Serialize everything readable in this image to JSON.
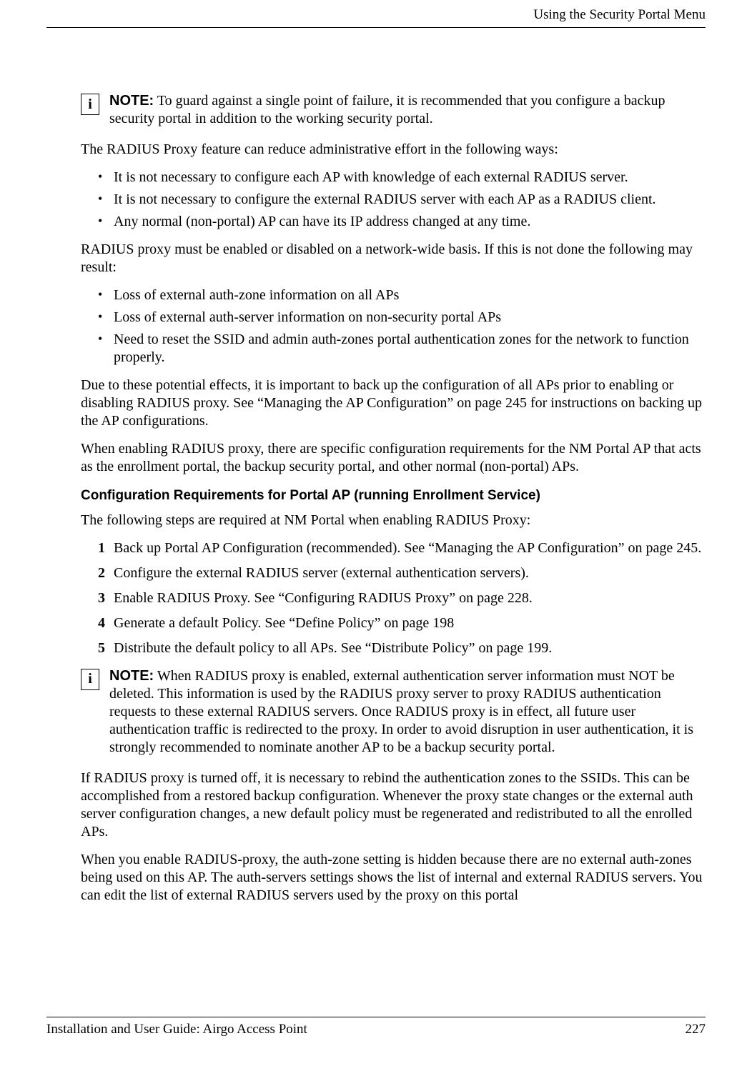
{
  "header": {
    "title": "Using the Security Portal Menu"
  },
  "footer": {
    "guide": "Installation and User Guide: Airgo Access Point",
    "page_number": "227"
  },
  "note1": {
    "label": "NOTE:",
    "text": " To guard against a single point of failure, it is recommended that you configure a backup security portal in addition to the working security portal."
  },
  "intro_para": "The RADIUS Proxy feature can reduce administrative effort in the following ways:",
  "bullets1": {
    "b1": "It is not necessary to configure each AP with knowledge of each external RADIUS server.",
    "b2": "It is not necessary to configure the external RADIUS server with each AP as a RADIUS client.",
    "b3": "Any normal (non-portal) AP can have its IP address changed at any time."
  },
  "para2": "RADIUS proxy must be enabled or disabled on a network-wide basis. If this is not done the following may result:",
  "bullets2": {
    "b1": "Loss of external auth-zone information on all APs",
    "b2": "Loss of external auth-server information on non-security portal APs",
    "b3": "Need to reset the SSID and admin auth-zones portal authentication zones for the network to function properly."
  },
  "para3": "Due to these potential effects, it is important to back up the configuration of all APs prior to enabling or disabling RADIUS proxy. See “Managing the AP Configuration” on page 245 for instructions on backing up the AP configurations.",
  "para4": "When enabling RADIUS proxy, there are specific configuration requirements for the NM Portal AP that acts as the enrollment portal, the backup security portal, and other normal (non-portal) APs.",
  "subheading1": "Configuration Requirements for Portal AP (running Enrollment Service)",
  "para5": "The following steps are required at NM Portal when enabling RADIUS Proxy:",
  "steps": {
    "s1": "Back up Portal AP Configuration (recommended). See “Managing the AP Configuration” on page 245.",
    "s2": "Configure the external RADIUS server (external authentication servers).",
    "s3": "Enable RADIUS Proxy. See “Configuring RADIUS Proxy” on page 228.",
    "s4": "Generate a default Policy. See “Define Policy” on page 198",
    "s5": "Distribute the default policy to all APs. See “Distribute Policy” on page 199."
  },
  "note2": {
    "label": "NOTE:",
    "text": " When RADIUS proxy is enabled, external authentication server information must NOT be deleted. This information is used by the RADIUS proxy server to proxy RADIUS authentication requests to these external RADIUS servers. Once RADIUS proxy is in effect, all future user authentication traffic is redirected to the proxy. In order to avoid disruption in user authentication, it is strongly recommended to nominate another AP to be a backup security portal."
  },
  "para6": "If RADIUS proxy is turned off, it is necessary to rebind the authentication zones to the SSIDs. This can be accomplished from a restored backup configuration. Whenever the proxy state changes or the external auth server configuration changes, a new default policy must be regenerated and redistributed to all the enrolled APs.",
  "para7": "When you enable RADIUS-proxy, the auth-zone setting is hidden because there are no external auth-zones being used on this AP. The auth-servers settings shows the list of internal and external RADIUS servers. You can edit the list of external RADIUS servers used by the proxy on this portal"
}
